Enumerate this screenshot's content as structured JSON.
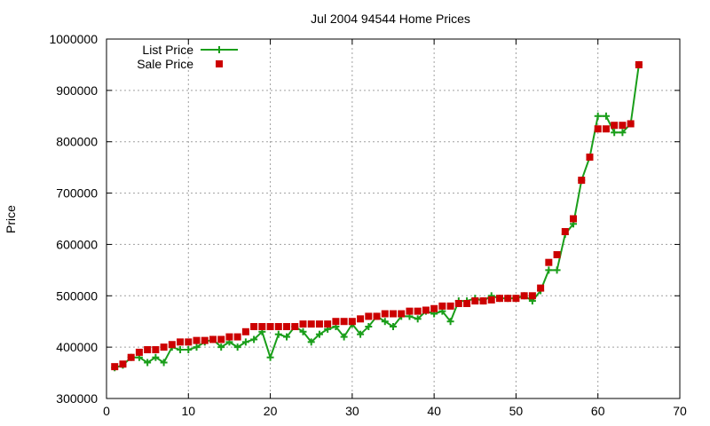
{
  "chart_data": {
    "type": "line",
    "title": "Jul 2004 94544 Home Prices",
    "xlabel": "",
    "ylabel": "Price",
    "xlim": [
      0,
      70
    ],
    "ylim": [
      300000,
      1000000
    ],
    "x_ticks": [
      "0",
      "10",
      "20",
      "30",
      "40",
      "50",
      "60",
      "70"
    ],
    "y_ticks": [
      "300000",
      "400000",
      "500000",
      "600000",
      "700000",
      "800000",
      "900000",
      "1000000"
    ],
    "grid": true,
    "legend_position": "top-left",
    "series": [
      {
        "name": "List Price",
        "color": "#1a9e1a",
        "style": "line-plus",
        "x": [
          1,
          2,
          3,
          4,
          5,
          6,
          7,
          8,
          9,
          10,
          11,
          12,
          13,
          14,
          15,
          16,
          17,
          18,
          19,
          20,
          21,
          22,
          23,
          24,
          25,
          26,
          27,
          28,
          29,
          30,
          31,
          32,
          33,
          34,
          35,
          36,
          37,
          38,
          39,
          40,
          41,
          42,
          43,
          44,
          45,
          46,
          47,
          48,
          49,
          50,
          51,
          52,
          53,
          54,
          55,
          56,
          57,
          58,
          59,
          60,
          61,
          62,
          63,
          64,
          65
        ],
        "y": [
          360000,
          365000,
          380000,
          380000,
          370000,
          380000,
          370000,
          400000,
          395000,
          395000,
          400000,
          410000,
          415000,
          400000,
          410000,
          400000,
          410000,
          415000,
          430000,
          380000,
          425000,
          420000,
          440000,
          430000,
          410000,
          425000,
          435000,
          440000,
          420000,
          445000,
          425000,
          440000,
          460000,
          450000,
          440000,
          460000,
          460000,
          455000,
          470000,
          465000,
          470000,
          450000,
          490000,
          490000,
          495000,
          490000,
          500000,
          495000,
          495000,
          495000,
          500000,
          490000,
          510000,
          550000,
          550000,
          620000,
          640000,
          725000,
          770000,
          850000,
          850000,
          818000,
          818000,
          835000,
          950000
        ]
      },
      {
        "name": "Sale Price",
        "color": "#cc0000",
        "style": "square",
        "x": [
          1,
          2,
          3,
          4,
          5,
          6,
          7,
          8,
          9,
          10,
          11,
          12,
          13,
          14,
          15,
          16,
          17,
          18,
          19,
          20,
          21,
          22,
          23,
          24,
          25,
          26,
          27,
          28,
          29,
          30,
          31,
          32,
          33,
          34,
          35,
          36,
          37,
          38,
          39,
          40,
          41,
          42,
          43,
          44,
          45,
          46,
          47,
          48,
          49,
          50,
          51,
          52,
          53,
          54,
          55,
          56,
          57,
          58,
          59,
          60,
          61,
          62,
          63,
          64,
          65
        ],
        "y": [
          362000,
          367000,
          380000,
          390000,
          395000,
          395000,
          400000,
          405000,
          410000,
          410000,
          413000,
          413000,
          415000,
          415000,
          420000,
          420000,
          430000,
          440000,
          440000,
          440000,
          440000,
          440000,
          440000,
          445000,
          445000,
          445000,
          445000,
          450000,
          450000,
          450000,
          455000,
          460000,
          460000,
          465000,
          465000,
          465000,
          470000,
          470000,
          472000,
          475000,
          480000,
          480000,
          485000,
          485000,
          490000,
          490000,
          492000,
          495000,
          495000,
          495000,
          500000,
          500000,
          515000,
          565000,
          580000,
          625000,
          650000,
          725000,
          770000,
          825000,
          825000,
          832000,
          832000,
          835000,
          950000
        ]
      }
    ]
  }
}
